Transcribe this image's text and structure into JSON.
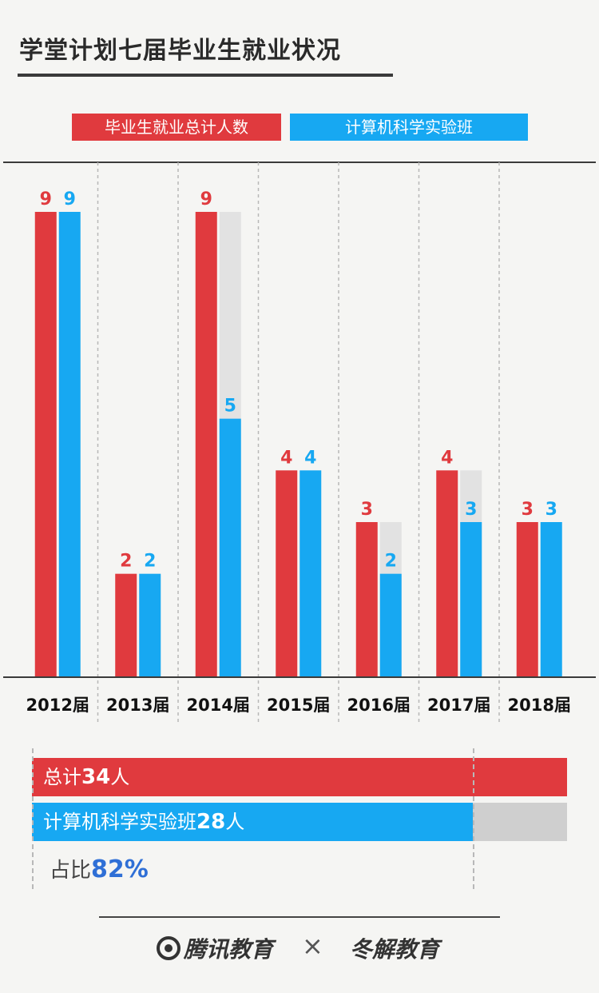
{
  "title": "学堂计划七届毕业生就业状况",
  "legend": {
    "red": "毕业生就业总计人数",
    "blue": "计算机科学实验班"
  },
  "colors": {
    "red": "#e03a3e",
    "blue": "#17a8f2",
    "gray": "#e2e2e2"
  },
  "chart_data": {
    "type": "bar",
    "categories": [
      "2012届",
      "2013届",
      "2014届",
      "2015届",
      "2016届",
      "2017届",
      "2018届"
    ],
    "series": [
      {
        "name": "毕业生就业总计人数",
        "values": [
          9,
          2,
          9,
          4,
          3,
          4,
          3
        ]
      },
      {
        "name": "计算机科学实验班",
        "values": [
          9,
          2,
          5,
          4,
          2,
          3,
          3
        ]
      }
    ],
    "ylim": [
      0,
      9
    ],
    "grid": false,
    "legend_position": "top"
  },
  "summary": {
    "total_prefix": "总计",
    "total_value": "34",
    "total_suffix": "人",
    "cs_prefix": "计算机科学实验班",
    "cs_value": "28",
    "cs_suffix": "人",
    "ratio_prefix": "占比",
    "ratio_value": "82%",
    "total": 34,
    "cs": 28
  },
  "footer": {
    "logo_left": "腾讯教育",
    "times": "×",
    "logo_right": "冬解教育"
  }
}
